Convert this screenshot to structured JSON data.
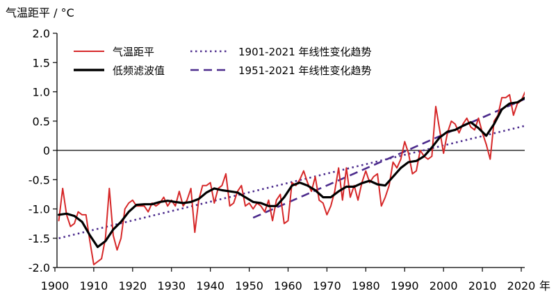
{
  "chart_data": {
    "type": "line",
    "ylabel": "气温距平 / °C",
    "xunit": "年",
    "xlim": [
      1901,
      2021
    ],
    "ylim": [
      -2.0,
      2.0
    ],
    "xticks": [
      1900,
      1910,
      1920,
      1930,
      1940,
      1950,
      1960,
      1970,
      1980,
      1990,
      2000,
      2010,
      2020
    ],
    "yticks": [
      {
        "value": 2.0,
        "label": "2.0"
      },
      {
        "value": 1.5,
        "label": "1.5"
      },
      {
        "value": 1.0,
        "label": "1.0"
      },
      {
        "value": 0.5,
        "label": "0.5"
      },
      {
        "value": 0.0,
        "label": "0"
      },
      {
        "value": -0.5,
        "label": "-0.5"
      },
      {
        "value": -1.0,
        "label": "-1.0"
      },
      {
        "value": -1.5,
        "label": "-1.5"
      },
      {
        "value": -2.0,
        "label": "-2.0"
      }
    ],
    "legend_placement": "top",
    "colors": {
      "anomaly": "#d62728",
      "filtered": "#000000",
      "trend": "#4b2a8c",
      "zero_line": "#000000"
    },
    "series": [
      {
        "name": "气温距平",
        "style": "solid-red",
        "x": [
          1901,
          1902,
          1903,
          1904,
          1905,
          1906,
          1907,
          1908,
          1909,
          1910,
          1911,
          1912,
          1913,
          1914,
          1915,
          1916,
          1917,
          1918,
          1919,
          1920,
          1921,
          1922,
          1923,
          1924,
          1925,
          1926,
          1927,
          1928,
          1929,
          1930,
          1931,
          1932,
          1933,
          1934,
          1935,
          1936,
          1937,
          1938,
          1939,
          1940,
          1941,
          1942,
          1943,
          1944,
          1945,
          1946,
          1947,
          1948,
          1949,
          1950,
          1951,
          1952,
          1953,
          1954,
          1955,
          1956,
          1957,
          1958,
          1959,
          1960,
          1961,
          1962,
          1963,
          1964,
          1965,
          1966,
          1967,
          1968,
          1969,
          1970,
          1971,
          1972,
          1973,
          1974,
          1975,
          1976,
          1977,
          1978,
          1979,
          1980,
          1981,
          1982,
          1983,
          1984,
          1985,
          1986,
          1987,
          1988,
          1989,
          1990,
          1991,
          1992,
          1993,
          1994,
          1995,
          1996,
          1997,
          1998,
          1999,
          2000,
          2001,
          2002,
          2003,
          2004,
          2005,
          2006,
          2007,
          2008,
          2009,
          2010,
          2011,
          2012,
          2013,
          2014,
          2015,
          2016,
          2017,
          2018,
          2019,
          2020,
          2021
        ],
        "values": [
          -1.2,
          -0.65,
          -1.1,
          -1.3,
          -1.25,
          -1.05,
          -1.1,
          -1.1,
          -1.55,
          -1.95,
          -1.9,
          -1.85,
          -1.5,
          -0.65,
          -1.45,
          -1.7,
          -1.5,
          -1.0,
          -0.9,
          -0.85,
          -0.95,
          -0.95,
          -0.95,
          -1.05,
          -0.9,
          -0.95,
          -0.9,
          -0.8,
          -0.95,
          -0.85,
          -0.95,
          -0.7,
          -0.95,
          -0.85,
          -0.65,
          -1.4,
          -0.85,
          -0.6,
          -0.6,
          -0.55,
          -0.9,
          -0.65,
          -0.6,
          -0.4,
          -0.95,
          -0.9,
          -0.7,
          -0.6,
          -0.95,
          -0.9,
          -1.0,
          -0.9,
          -0.95,
          -1.05,
          -0.85,
          -1.2,
          -0.85,
          -0.75,
          -1.25,
          -1.2,
          -0.55,
          -0.6,
          -0.5,
          -0.35,
          -0.55,
          -0.7,
          -0.45,
          -0.85,
          -0.9,
          -1.1,
          -0.95,
          -0.7,
          -0.3,
          -0.85,
          -0.3,
          -0.8,
          -0.6,
          -0.85,
          -0.55,
          -0.35,
          -0.55,
          -0.45,
          -0.4,
          -0.95,
          -0.8,
          -0.6,
          -0.2,
          -0.3,
          -0.15,
          0.15,
          -0.05,
          -0.4,
          -0.35,
          0.0,
          -0.1,
          -0.15,
          -0.1,
          0.75,
          0.35,
          -0.05,
          0.3,
          0.5,
          0.45,
          0.3,
          0.45,
          0.55,
          0.4,
          0.35,
          0.55,
          0.3,
          0.1,
          -0.15,
          0.5,
          0.6,
          0.9,
          0.9,
          0.95,
          0.6,
          0.8,
          0.85,
          1.0
        ]
      },
      {
        "name": "低频滤波值",
        "style": "solid-black-thick",
        "x": [
          1901,
          1903,
          1905,
          1907,
          1909,
          1911,
          1913,
          1915,
          1917,
          1919,
          1921,
          1923,
          1925,
          1927,
          1929,
          1931,
          1933,
          1935,
          1937,
          1939,
          1941,
          1943,
          1945,
          1947,
          1949,
          1951,
          1953,
          1955,
          1957,
          1959,
          1961,
          1963,
          1965,
          1967,
          1969,
          1971,
          1973,
          1975,
          1977,
          1979,
          1981,
          1983,
          1985,
          1987,
          1989,
          1991,
          1993,
          1995,
          1997,
          1999,
          2001,
          2003,
          2005,
          2007,
          2009,
          2011,
          2013,
          2015,
          2017,
          2019,
          2021
        ],
        "values": [
          -1.1,
          -1.08,
          -1.12,
          -1.22,
          -1.45,
          -1.65,
          -1.55,
          -1.35,
          -1.22,
          -1.05,
          -0.93,
          -0.92,
          -0.92,
          -0.88,
          -0.86,
          -0.88,
          -0.9,
          -0.88,
          -0.83,
          -0.72,
          -0.65,
          -0.68,
          -0.7,
          -0.72,
          -0.8,
          -0.88,
          -0.9,
          -0.95,
          -0.95,
          -0.8,
          -0.6,
          -0.55,
          -0.6,
          -0.68,
          -0.8,
          -0.8,
          -0.7,
          -0.62,
          -0.62,
          -0.56,
          -0.52,
          -0.58,
          -0.6,
          -0.45,
          -0.3,
          -0.2,
          -0.18,
          -0.1,
          0.05,
          0.22,
          0.32,
          0.35,
          0.42,
          0.48,
          0.38,
          0.25,
          0.45,
          0.7,
          0.8,
          0.82,
          0.9
        ]
      },
      {
        "name": "1901-2021 年线性变化趋势",
        "style": "dotted-purple",
        "x": [
          1901,
          2021
        ],
        "values": [
          -1.5,
          0.42
        ]
      },
      {
        "name": "1951-2021 年线性变化趋势",
        "style": "dashed-purple",
        "x": [
          1951,
          2021
        ],
        "values": [
          -1.15,
          0.88
        ]
      }
    ]
  }
}
